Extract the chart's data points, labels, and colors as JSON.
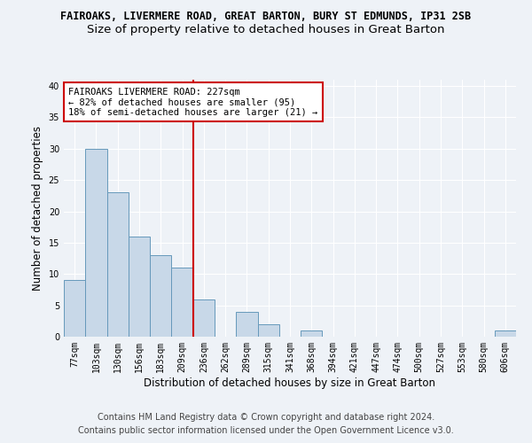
{
  "title1": "FAIROAKS, LIVERMERE ROAD, GREAT BARTON, BURY ST EDMUNDS, IP31 2SB",
  "title2": "Size of property relative to detached houses in Great Barton",
  "xlabel": "Distribution of detached houses by size in Great Barton",
  "ylabel": "Number of detached properties",
  "categories": [
    "77sqm",
    "103sqm",
    "130sqm",
    "156sqm",
    "183sqm",
    "209sqm",
    "236sqm",
    "262sqm",
    "289sqm",
    "315sqm",
    "341sqm",
    "368sqm",
    "394sqm",
    "421sqm",
    "447sqm",
    "474sqm",
    "500sqm",
    "527sqm",
    "553sqm",
    "580sqm",
    "606sqm"
  ],
  "values": [
    9,
    30,
    23,
    16,
    13,
    11,
    6,
    0,
    4,
    2,
    0,
    1,
    0,
    0,
    0,
    0,
    0,
    0,
    0,
    0,
    1
  ],
  "bar_color": "#c8d8e8",
  "bar_edge_color": "#6699bb",
  "vline_x": 5.5,
  "vline_color": "#cc0000",
  "annotation_text": "FAIROAKS LIVERMERE ROAD: 227sqm\n← 82% of detached houses are smaller (95)\n18% of semi-detached houses are larger (21) →",
  "annotation_box_color": "#ffffff",
  "annotation_box_edge_color": "#cc0000",
  "ylim": [
    0,
    41
  ],
  "yticks": [
    0,
    5,
    10,
    15,
    20,
    25,
    30,
    35,
    40
  ],
  "footer1": "Contains HM Land Registry data © Crown copyright and database right 2024.",
  "footer2": "Contains public sector information licensed under the Open Government Licence v3.0.",
  "background_color": "#eef2f7",
  "grid_color": "#ffffff",
  "title1_fontsize": 8.5,
  "title2_fontsize": 9.5,
  "xlabel_fontsize": 8.5,
  "ylabel_fontsize": 8.5,
  "footer_fontsize": 7.0,
  "annot_fontsize": 7.5,
  "tick_fontsize": 7.0
}
